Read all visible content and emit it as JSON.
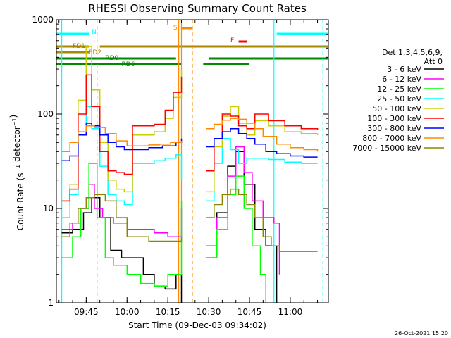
{
  "chart_data": {
    "type": "line",
    "title": "RHESSI Observing Summary Count Rates",
    "xlabel": "Start Time (09-Dec-03 09:34:02)",
    "ylabel": "Count Rate (s⁻¹ detector⁻¹)",
    "y_scale": "log",
    "ylim": [
      1,
      1000
    ],
    "xlim": [
      "09:34:02",
      "11:14:00"
    ],
    "x_ticks": [
      "09:45",
      "10:00",
      "10:15",
      "10:30",
      "10:45",
      "11:00"
    ],
    "y_ticks": [
      "1",
      "10",
      "100",
      "1000"
    ],
    "timestamp": "26-Oct-2021 15:20",
    "legend_header": [
      "Det 1,3,4,5,6,9,",
      "Att 0"
    ],
    "legend_placement": "right",
    "data_gaps": [
      [
        "10:21",
        "10:28"
      ]
    ],
    "series": [
      {
        "name": "3 - 6 keV",
        "color": "#000000",
        "x": [
          "09:36",
          "09:40",
          "09:44",
          "09:47",
          "09:50",
          "09:54",
          "09:58",
          "10:02",
          "10:06",
          "10:10",
          "10:14",
          "10:18",
          "10:20",
          "10:29",
          "10:33",
          "10:37",
          "10:40",
          "10:43",
          "10:47",
          "10:51",
          "10:55"
        ],
        "y": [
          5.5,
          6,
          9,
          13,
          8,
          3.6,
          3,
          3,
          2,
          1.5,
          1.4,
          2,
          1,
          3,
          9,
          28,
          40,
          18,
          6,
          4,
          1
        ]
      },
      {
        "name": "6 - 12 keV",
        "color": "#ff00ff",
        "x": [
          "09:36",
          "09:40",
          "09:43",
          "09:46",
          "09:48",
          "09:51",
          "09:55",
          "10:00",
          "10:05",
          "10:10",
          "10:15",
          "10:19",
          "10:20",
          "10:29",
          "10:33",
          "10:37",
          "10:40",
          "10:43",
          "10:46",
          "10:50",
          "10:54",
          "10:56"
        ],
        "y": [
          6,
          7,
          10,
          18,
          10,
          8,
          7,
          6,
          6,
          5.5,
          5,
          5,
          10,
          4,
          8,
          22,
          45,
          24,
          12,
          8,
          7,
          2
        ]
      },
      {
        "name": "12 - 25 keV",
        "color": "#00ff00",
        "x": [
          "09:36",
          "09:40",
          "09:43",
          "09:46",
          "09:49",
          "09:52",
          "09:55",
          "10:00",
          "10:05",
          "10:10",
          "10:15",
          "10:20",
          "10:29",
          "10:33",
          "10:37",
          "10:40",
          "10:43",
          "10:46",
          "10:49",
          "10:51"
        ],
        "y": [
          3,
          5,
          10,
          30,
          8,
          3,
          2.5,
          2,
          1.6,
          1.5,
          2,
          12,
          3,
          6,
          14,
          22,
          10,
          4,
          2,
          1
        ]
      },
      {
        "name": "25 - 50 keV",
        "color": "#00ffff",
        "x": [
          "09:36",
          "09:39",
          "09:42",
          "09:45",
          "09:47",
          "09:50",
          "09:53",
          "09:56",
          "09:59",
          "10:02",
          "10:06",
          "10:10",
          "10:14",
          "10:18",
          "10:20",
          "10:29",
          "10:32",
          "10:35",
          "10:38",
          "10:41",
          "10:44",
          "10:47",
          "10:52",
          "10:58",
          "11:04",
          "11:10"
        ],
        "y": [
          8,
          14,
          60,
          120,
          70,
          28,
          14,
          12,
          11,
          30,
          30,
          32,
          34,
          37,
          20,
          12,
          30,
          55,
          42,
          30,
          34,
          34,
          33,
          31,
          30,
          30
        ]
      },
      {
        "name": "50 - 100 keV",
        "color": "#cccc00",
        "x": [
          "09:36",
          "09:39",
          "09:42",
          "09:45",
          "09:47",
          "09:50",
          "09:53",
          "09:56",
          "09:59",
          "10:02",
          "10:06",
          "10:10",
          "10:14",
          "10:17",
          "10:20",
          "10:29",
          "10:32",
          "10:35",
          "10:38",
          "10:41",
          "10:44",
          "10:47",
          "10:52",
          "10:58",
          "11:04",
          "11:10"
        ],
        "y": [
          12,
          18,
          140,
          520,
          180,
          50,
          20,
          16,
          15,
          60,
          60,
          65,
          90,
          150,
          300,
          15,
          45,
          95,
          120,
          80,
          60,
          85,
          75,
          65,
          62,
          60
        ]
      },
      {
        "name": "100 - 300 keV",
        "color": "#ff0000",
        "x": [
          "09:36",
          "09:39",
          "09:42",
          "09:45",
          "09:47",
          "09:50",
          "09:53",
          "09:56",
          "09:59",
          "10:02",
          "10:06",
          "10:10",
          "10:14",
          "10:17",
          "10:20",
          "10:29",
          "10:32",
          "10:35",
          "10:38",
          "10:41",
          "10:44",
          "10:47",
          "10:52",
          "10:58",
          "11:04",
          "11:10"
        ],
        "y": [
          12,
          16,
          100,
          260,
          120,
          40,
          25,
          24,
          23,
          75,
          75,
          78,
          110,
          170,
          250,
          25,
          55,
          100,
          95,
          75,
          70,
          100,
          85,
          75,
          70,
          68
        ]
      },
      {
        "name": "300 - 800 keV",
        "color": "#0000ff",
        "x": [
          "09:36",
          "09:39",
          "09:42",
          "09:45",
          "09:47",
          "09:50",
          "09:53",
          "09:56",
          "09:59",
          "10:03",
          "10:08",
          "10:13",
          "10:18",
          "10:20",
          "10:29",
          "10:32",
          "10:35",
          "10:38",
          "10:41",
          "10:44",
          "10:47",
          "10:51",
          "10:55",
          "11:00",
          "11:05",
          "11:10"
        ],
        "y": [
          32,
          36,
          60,
          80,
          75,
          60,
          50,
          45,
          42,
          42,
          44,
          46,
          50,
          55,
          45,
          55,
          65,
          70,
          62,
          55,
          48,
          40,
          38,
          36,
          35,
          35
        ]
      },
      {
        "name": "800 - 7000 keV",
        "color": "#ff8800",
        "x": [
          "09:36",
          "09:39",
          "09:42",
          "09:45",
          "09:48",
          "09:52",
          "09:56",
          "10:00",
          "10:04",
          "10:08",
          "10:12",
          "10:16",
          "10:20",
          "10:29",
          "10:32",
          "10:35",
          "10:38",
          "10:41",
          "10:44",
          "10:47",
          "10:50",
          "10:55",
          "11:00",
          "11:05",
          "11:10"
        ],
        "y": [
          40,
          50,
          65,
          75,
          72,
          62,
          52,
          46,
          46,
          47,
          48,
          50,
          52,
          70,
          78,
          86,
          90,
          88,
          80,
          70,
          58,
          48,
          44,
          42,
          40
        ]
      },
      {
        "name": "7000 - 15000 keV",
        "color": "#888800",
        "x": [
          "09:36",
          "09:39",
          "09:42",
          "09:45",
          "09:48",
          "09:52",
          "09:56",
          "10:00",
          "10:04",
          "10:08",
          "10:12",
          "10:16",
          "10:20",
          "10:29",
          "10:32",
          "10:35",
          "10:38",
          "10:41",
          "10:44",
          "10:47",
          "10:50",
          "10:53",
          "10:56",
          "11:00",
          "11:05",
          "11:10"
        ],
        "y": [
          5,
          7,
          10,
          13,
          14,
          12,
          8,
          5,
          5,
          4.5,
          4.5,
          4.5,
          5,
          8,
          11,
          14,
          16,
          14,
          11,
          8,
          5,
          4,
          3.5,
          3.5,
          3.5,
          3.5
        ]
      }
    ],
    "flag_bars": [
      {
        "label": "N",
        "color": "#00ffff",
        "segments": [
          [
            "09:34:02",
            "09:46"
          ],
          [
            "10:55",
            "11:14"
          ]
        ]
      },
      {
        "label": "S",
        "color": "#ff8800",
        "segments": [
          [
            "10:20",
            "10:24"
          ]
        ]
      },
      {
        "label": "F",
        "color": "#ff0000",
        "segments": [
          [
            "10:41",
            "10:44"
          ]
        ]
      },
      {
        "label": "FD1",
        "color": "#aa8800",
        "segments": [
          [
            "09:34:02",
            "09:46"
          ],
          [
            "09:50",
            "11:14"
          ]
        ]
      },
      {
        "label": "FD2",
        "color": "#aa8800",
        "segments": []
      },
      {
        "label": "RD0",
        "color": "#008800",
        "segments": [
          [
            "09:34:02",
            "10:18"
          ],
          [
            "10:30",
            "11:14"
          ]
        ]
      },
      {
        "label": "RD6",
        "color": "#008800",
        "segments": [
          [
            "09:34:02",
            "10:20"
          ],
          [
            "10:28",
            "10:45"
          ]
        ]
      }
    ],
    "vertical_markers": [
      {
        "time": "09:36",
        "color": "#00ffff",
        "style": "solid"
      },
      {
        "time": "09:49",
        "color": "#00ffff",
        "style": "dashed"
      },
      {
        "time": "10:19",
        "color": "#ff8800",
        "style": "solid"
      },
      {
        "time": "10:20",
        "color": "#ff8800",
        "style": "solid"
      },
      {
        "time": "10:24",
        "color": "#ff8800",
        "style": "dashed"
      },
      {
        "time": "10:54",
        "color": "#00ffff",
        "style": "solid"
      },
      {
        "time": "11:12",
        "color": "#00ffff",
        "style": "dashed"
      }
    ]
  }
}
